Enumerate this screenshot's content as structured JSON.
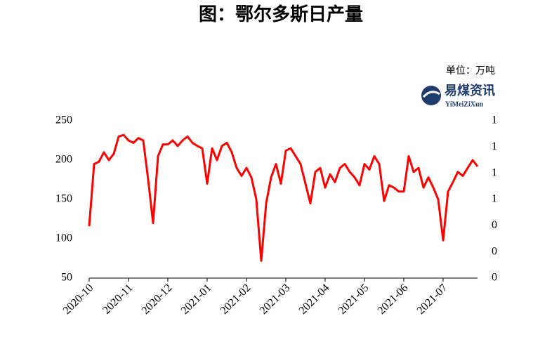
{
  "chart_data": {
    "type": "line",
    "title": "图：鄂尔多斯日产量",
    "unit_note": "单位：万吨",
    "logo": {
      "name": "易煤资讯",
      "subname": "YiMeiZiXun"
    },
    "categories": [
      "2020-10",
      null,
      null,
      null,
      null,
      null,
      null,
      null,
      "2020-11",
      null,
      null,
      null,
      null,
      null,
      null,
      null,
      "2020-12",
      null,
      null,
      null,
      null,
      null,
      null,
      null,
      "2021-01",
      null,
      null,
      null,
      null,
      null,
      null,
      null,
      "2021-02",
      null,
      null,
      null,
      null,
      null,
      null,
      null,
      "2021-03",
      null,
      null,
      null,
      null,
      null,
      null,
      null,
      "2021-04",
      null,
      null,
      null,
      null,
      null,
      null,
      null,
      "2021-05",
      null,
      null,
      null,
      null,
      null,
      null,
      null,
      "2021-06",
      null,
      null,
      null,
      null,
      null,
      null,
      null,
      "2021-07",
      null,
      null,
      null,
      null,
      null,
      null,
      null
    ],
    "series": [
      {
        "name": "鄂尔多斯日产量",
        "color": "#ff0000",
        "values": [
          116,
          195,
          198,
          210,
          200,
          208,
          230,
          232,
          225,
          222,
          228,
          225,
          175,
          120,
          205,
          220,
          220,
          225,
          218,
          225,
          230,
          222,
          218,
          215,
          170,
          215,
          200,
          218,
          222,
          210,
          190,
          180,
          190,
          178,
          150,
          72,
          145,
          178,
          195,
          170,
          212,
          215,
          205,
          195,
          170,
          145,
          185,
          190,
          165,
          182,
          172,
          190,
          195,
          185,
          178,
          168,
          195,
          188,
          205,
          195,
          148,
          168,
          165,
          160,
          160,
          205,
          185,
          190,
          165,
          178,
          165,
          150,
          98,
          160,
          172,
          185,
          180,
          190,
          200,
          192
        ]
      }
    ],
    "ylim": [
      50,
      250
    ],
    "yticks": [
      50,
      100,
      150,
      200,
      250
    ],
    "y2lim": [
      0,
      1.2
    ],
    "y2ticks": [
      0,
      {
        "value": 0.2,
        "label": "0"
      },
      {
        "value": 0.4,
        "label": "0"
      },
      {
        "value": 0.6,
        "label": "1"
      },
      {
        "value": 0.8,
        "label": "1"
      },
      {
        "value": 1.0,
        "label": "1"
      },
      {
        "value": 1.2,
        "label": "1"
      }
    ],
    "grid": false
  }
}
